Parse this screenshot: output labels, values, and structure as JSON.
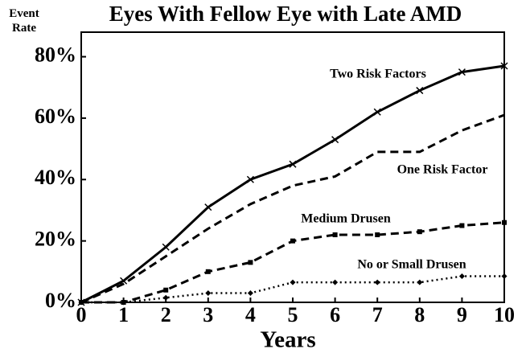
{
  "chart_data": {
    "type": "line",
    "title": "Eyes With Fellow Eye with Late AMD",
    "xlabel": "Years",
    "ylabel": "Event Rate",
    "x": [
      0,
      1,
      2,
      3,
      4,
      5,
      6,
      7,
      8,
      9,
      10
    ],
    "xlim": [
      0,
      10
    ],
    "xticks": [
      0,
      1,
      2,
      3,
      4,
      5,
      6,
      7,
      8,
      9,
      10
    ],
    "ylim": [
      0,
      88
    ],
    "yticks": [
      {
        "value": 0,
        "label": "0%"
      },
      {
        "value": 20,
        "label": "20%"
      },
      {
        "value": 40,
        "label": "40%"
      },
      {
        "value": 60,
        "label": "60%"
      },
      {
        "value": 80,
        "label": "80%"
      }
    ],
    "series": [
      {
        "name": "Two Risk Factors",
        "color": "#000000",
        "style": "solid",
        "marker": "x",
        "values": [
          0,
          7,
          18,
          31,
          40,
          45,
          53,
          62,
          69,
          75,
          77
        ]
      },
      {
        "name": "One Risk Factor",
        "color": "#000000",
        "style": "dashed",
        "marker": "none",
        "values": [
          0,
          6,
          15,
          24,
          32,
          38,
          41,
          49,
          49,
          56,
          61
        ]
      },
      {
        "name": "Medium Drusen",
        "color": "#000000",
        "style": "dashed",
        "marker": "square",
        "values": [
          0,
          0,
          4,
          10,
          13,
          20,
          22,
          22,
          23,
          25,
          26
        ]
      },
      {
        "name": "No or Small Drusen",
        "color": "#000000",
        "style": "dotted",
        "marker": "diamond",
        "values": [
          0,
          0,
          1.5,
          3,
          3,
          6.5,
          6.5,
          6.5,
          6.5,
          8.5,
          8.5
        ]
      }
    ]
  }
}
